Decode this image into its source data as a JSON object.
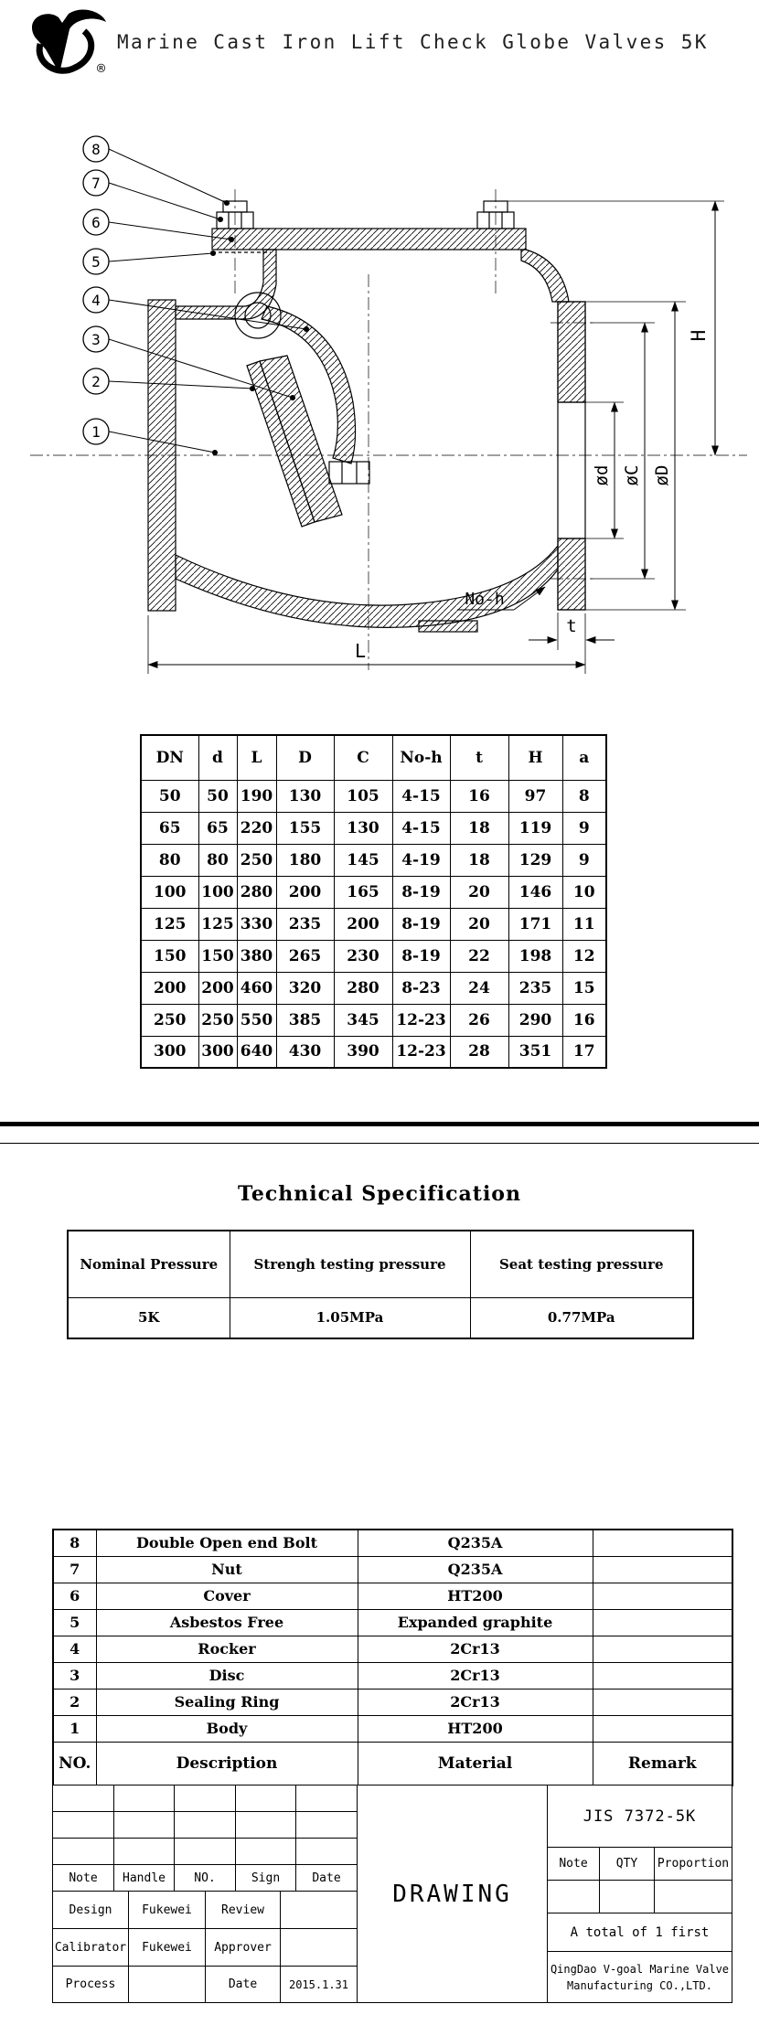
{
  "header": {
    "title": "Marine Cast Iron Lift Check Globe Valves 5K",
    "registered": "®"
  },
  "drawing": {
    "balloons": [
      "8",
      "7",
      "6",
      "5",
      "4",
      "3",
      "2",
      "1"
    ],
    "labels": {
      "H": "H",
      "phi_d": "ød",
      "phi_C": "øC",
      "phi_D": "øD",
      "L": "L",
      "t": "t",
      "no_h": "No-h"
    }
  },
  "dimensions_table": {
    "headers": [
      "DN",
      "d",
      "L",
      "D",
      "C",
      "No-h",
      "t",
      "H",
      "a"
    ],
    "rows": [
      [
        "50",
        "50",
        "190",
        "130",
        "105",
        "4-15",
        "16",
        "97",
        "8"
      ],
      [
        "65",
        "65",
        "220",
        "155",
        "130",
        "4-15",
        "18",
        "119",
        "9"
      ],
      [
        "80",
        "80",
        "250",
        "180",
        "145",
        "4-19",
        "18",
        "129",
        "9"
      ],
      [
        "100",
        "100",
        "280",
        "200",
        "165",
        "8-19",
        "20",
        "146",
        "10"
      ],
      [
        "125",
        "125",
        "330",
        "235",
        "200",
        "8-19",
        "20",
        "171",
        "11"
      ],
      [
        "150",
        "150",
        "380",
        "265",
        "230",
        "8-19",
        "22",
        "198",
        "12"
      ],
      [
        "200",
        "200",
        "460",
        "320",
        "280",
        "8-23",
        "24",
        "235",
        "15"
      ],
      [
        "250",
        "250",
        "550",
        "385",
        "345",
        "12-23",
        "26",
        "290",
        "16"
      ],
      [
        "300",
        "300",
        "640",
        "430",
        "390",
        "12-23",
        "28",
        "351",
        "17"
      ]
    ]
  },
  "spec": {
    "title": "Technical Specification",
    "headers": [
      "Nominal Pressure",
      "Strengh testing pressure",
      "Seat testing pressure"
    ],
    "values": [
      "5K",
      "1.05MPa",
      "0.77MPa"
    ]
  },
  "parts_table": {
    "rows": [
      [
        "8",
        "Double Open end Bolt",
        "Q235A",
        ""
      ],
      [
        "7",
        "Nut",
        "Q235A",
        ""
      ],
      [
        "6",
        "Cover",
        "HT200",
        ""
      ],
      [
        "5",
        "Asbestos Free",
        "Expanded graphite",
        ""
      ],
      [
        "4",
        "Rocker",
        "2Cr13",
        ""
      ],
      [
        "3",
        "Disc",
        "2Cr13",
        ""
      ],
      [
        "2",
        "Sealing Ring",
        "2Cr13",
        ""
      ],
      [
        "1",
        "Body",
        "HT200",
        ""
      ]
    ],
    "footer": [
      "NO.",
      "Description",
      "Material",
      "Remark"
    ]
  },
  "title_block": {
    "sign_row": [
      "Note",
      "Handle",
      "NO.",
      "Sign",
      "Date"
    ],
    "design_label": "Design",
    "design_value": "Fukewei",
    "review_label": "Review",
    "review_value": "",
    "calibrator_label": "Calibrator",
    "calibrator_value": "Fukewei",
    "approver_label": "Approver",
    "approver_value": "",
    "process_label": "Process",
    "process_value": "",
    "date_label": "Date",
    "date_value": "2015.1.31",
    "drawing_label": "DRAWING",
    "standard": "JIS 7372-5K",
    "qty_headers": [
      "Note",
      "QTY",
      "Proportion"
    ],
    "total": "A total of 1 first",
    "company_line1": "QingDao V-goal Marine Valve",
    "company_line2": "Manufacturing CO.,LTD."
  }
}
